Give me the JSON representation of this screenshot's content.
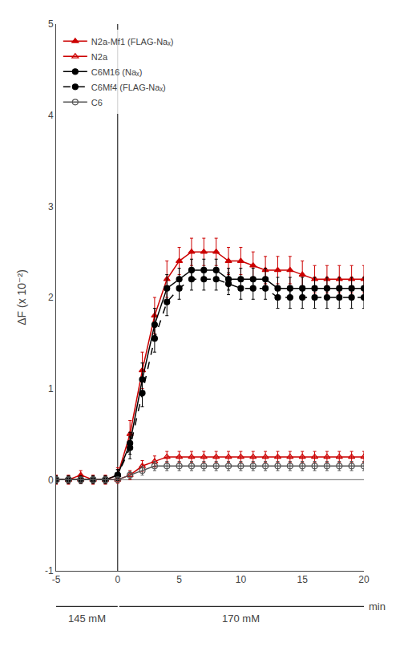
{
  "chart_data": {
    "type": "line",
    "y_label": "ΔF (x 10⁻²)",
    "annotations": [
      "145 mM",
      "170 mM",
      "min"
    ],
    "xlim": [
      -5,
      20
    ],
    "xticks": [
      -5,
      0,
      5,
      10,
      15,
      20
    ],
    "ylim": [
      -1,
      5
    ],
    "yticks": [
      -1,
      0,
      1,
      2,
      3,
      4,
      5
    ],
    "grid": false,
    "legend": "upper left",
    "x": [
      -5,
      -4,
      -3,
      -2,
      -1,
      0,
      1,
      2,
      3,
      4,
      5,
      6,
      7,
      8,
      9,
      10,
      11,
      12,
      13,
      14,
      15,
      16,
      17,
      18,
      19,
      20
    ],
    "series": [
      {
        "name": "N2a-Mf1 (FLAG-Naₓ)",
        "color": "#cc0000",
        "marker": "triangle-up",
        "line_style": "solid",
        "values": [
          0.0,
          0.0,
          0.05,
          0.0,
          0.0,
          0.05,
          0.5,
          1.2,
          1.8,
          2.2,
          2.4,
          2.5,
          2.5,
          2.5,
          2.4,
          2.4,
          2.35,
          2.3,
          2.3,
          2.3,
          2.25,
          2.2,
          2.2,
          2.2,
          2.2,
          2.2
        ],
        "yerr": [
          0.05,
          0.05,
          0.05,
          0.05,
          0.05,
          0.08,
          0.15,
          0.2,
          0.2,
          0.2,
          0.15,
          0.15,
          0.15,
          0.15,
          0.15,
          0.15,
          0.15,
          0.15,
          0.15,
          0.15,
          0.15,
          0.15,
          0.15,
          0.15,
          0.15,
          0.15
        ]
      },
      {
        "name": "N2a",
        "color": "#cc0000",
        "marker": "triangle-up-open",
        "line_style": "solid",
        "values": [
          0.0,
          0.0,
          0.0,
          0.0,
          0.0,
          0.0,
          0.05,
          0.15,
          0.2,
          0.25,
          0.25,
          0.25,
          0.25,
          0.25,
          0.25,
          0.25,
          0.25,
          0.25,
          0.25,
          0.25,
          0.25,
          0.25,
          0.25,
          0.25,
          0.25,
          0.25
        ],
        "yerr": [
          0.04,
          0.04,
          0.04,
          0.04,
          0.04,
          0.04,
          0.05,
          0.06,
          0.06,
          0.06,
          0.06,
          0.06,
          0.06,
          0.06,
          0.06,
          0.06,
          0.06,
          0.06,
          0.06,
          0.06,
          0.06,
          0.06,
          0.06,
          0.06,
          0.06,
          0.06
        ]
      },
      {
        "name": "C6M16 (Naₓ)",
        "color": "#000000",
        "marker": "circle",
        "line_style": "solid",
        "values": [
          0.0,
          0.0,
          0.0,
          0.0,
          0.0,
          0.05,
          0.4,
          1.1,
          1.7,
          2.1,
          2.2,
          2.3,
          2.3,
          2.3,
          2.2,
          2.2,
          2.2,
          2.2,
          2.1,
          2.1,
          2.1,
          2.1,
          2.1,
          2.1,
          2.1,
          2.1
        ],
        "yerr": [
          0.04,
          0.04,
          0.04,
          0.04,
          0.04,
          0.06,
          0.12,
          0.18,
          0.18,
          0.15,
          0.12,
          0.12,
          0.12,
          0.12,
          0.12,
          0.12,
          0.12,
          0.12,
          0.12,
          0.12,
          0.12,
          0.12,
          0.12,
          0.12,
          0.12,
          0.12
        ]
      },
      {
        "name": "C6Mf4 (FLAG-Naₓ)",
        "color": "#000000",
        "marker": "circle",
        "line_style": "dash",
        "values": [
          0.0,
          0.0,
          0.0,
          0.0,
          0.0,
          0.05,
          0.35,
          0.95,
          1.55,
          1.95,
          2.1,
          2.2,
          2.2,
          2.2,
          2.15,
          2.1,
          2.1,
          2.1,
          2.0,
          2.0,
          2.0,
          2.0,
          2.0,
          2.0,
          2.0,
          2.0
        ],
        "yerr": [
          0.04,
          0.04,
          0.04,
          0.04,
          0.04,
          0.06,
          0.12,
          0.15,
          0.15,
          0.15,
          0.12,
          0.12,
          0.12,
          0.12,
          0.12,
          0.12,
          0.12,
          0.12,
          0.12,
          0.12,
          0.12,
          0.12,
          0.12,
          0.12,
          0.12,
          0.12
        ]
      },
      {
        "name": "C6",
        "color": "#555555",
        "marker": "circle-open",
        "line_style": "solid",
        "values": [
          0.0,
          0.0,
          0.0,
          0.0,
          0.0,
          0.0,
          0.05,
          0.1,
          0.15,
          0.15,
          0.15,
          0.15,
          0.15,
          0.15,
          0.15,
          0.15,
          0.15,
          0.15,
          0.15,
          0.15,
          0.15,
          0.15,
          0.15,
          0.15,
          0.15,
          0.15
        ],
        "yerr": [
          0.03,
          0.03,
          0.03,
          0.03,
          0.03,
          0.03,
          0.04,
          0.05,
          0.05,
          0.05,
          0.05,
          0.05,
          0.05,
          0.05,
          0.05,
          0.05,
          0.05,
          0.05,
          0.05,
          0.05,
          0.05,
          0.05,
          0.05,
          0.05,
          0.05,
          0.05
        ]
      }
    ]
  }
}
